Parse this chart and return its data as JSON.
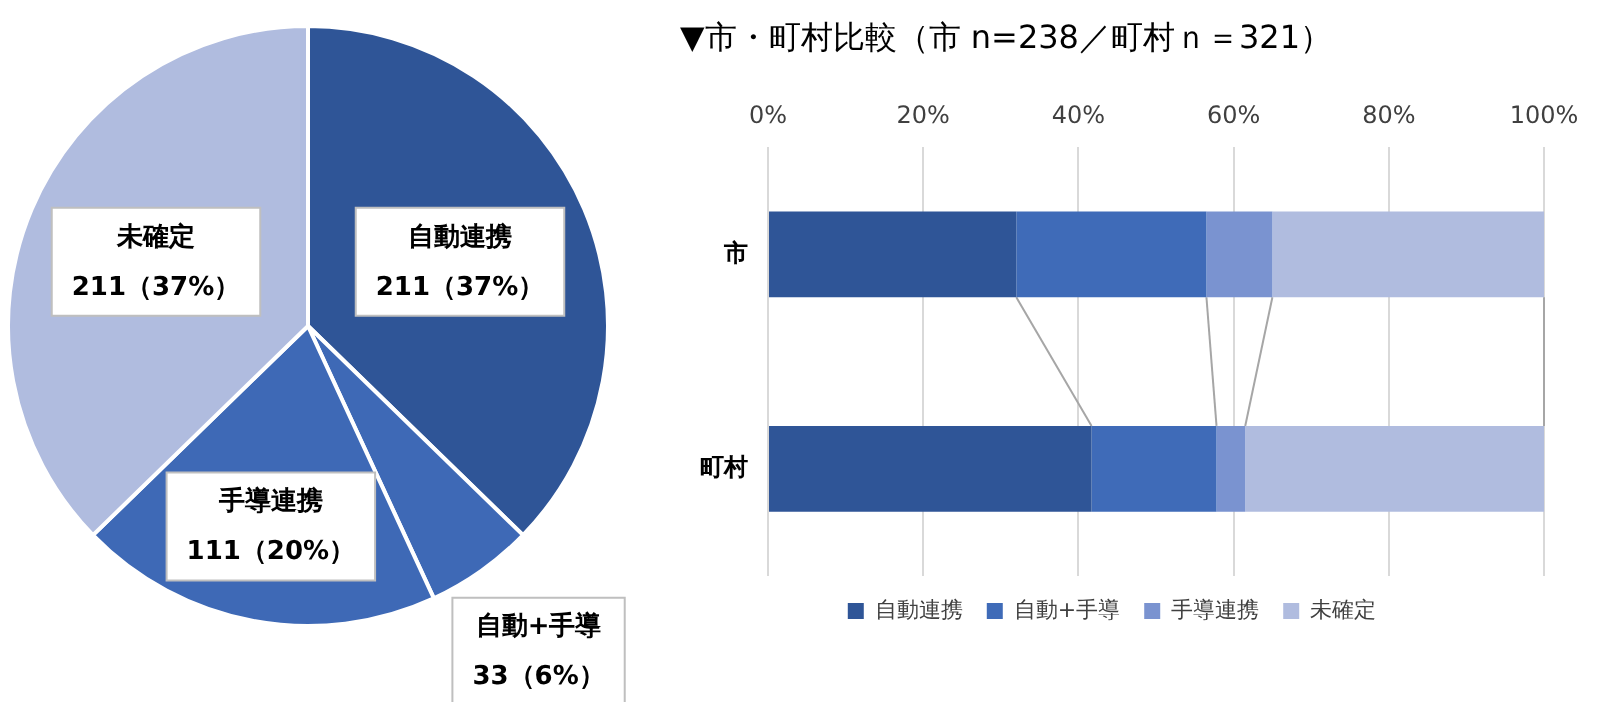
{
  "chart_data": [
    {
      "type": "pie",
      "categories": [
        "自動連携",
        "自動+手導",
        "手導連携",
        "未確定"
      ],
      "values": [
        211,
        33,
        111,
        211
      ],
      "colors": [
        "#2f5597",
        "#3e69b6",
        "#3e69b6",
        "#b0bcdf"
      ],
      "value_labels": [
        "211（37%）",
        "33（6%）",
        "111（20%）",
        "211（37%）"
      ]
    },
    {
      "type": "bar",
      "title": "▼市・町村比較（市 n=238／町村ｎ＝321）",
      "orientation": "horizontal",
      "stacked": true,
      "categories": [
        "市",
        "町村"
      ],
      "series": [
        {
          "name": "自動連携",
          "color": "#2f5597",
          "values": [
            32,
            41.7
          ]
        },
        {
          "name": "自動+手導",
          "color": "#3f6bb8",
          "values": [
            24.5,
            16.1
          ]
        },
        {
          "name": "手導連携",
          "color": "#7a93d0",
          "values": [
            8.5,
            3.7
          ]
        },
        {
          "name": "未確定",
          "color": "#b0bcdf",
          "values": [
            35,
            38.5
          ]
        }
      ],
      "xlim": [
        0,
        100
      ],
      "xticks": [
        {
          "value": 0,
          "label": "0%"
        },
        {
          "value": 20,
          "label": "20%"
        },
        {
          "value": 40,
          "label": "40%"
        },
        {
          "value": 60,
          "label": "60%"
        },
        {
          "value": 80,
          "label": "80%"
        },
        {
          "value": 100,
          "label": "100%"
        }
      ],
      "grid": "x",
      "legend": "bottom"
    }
  ]
}
